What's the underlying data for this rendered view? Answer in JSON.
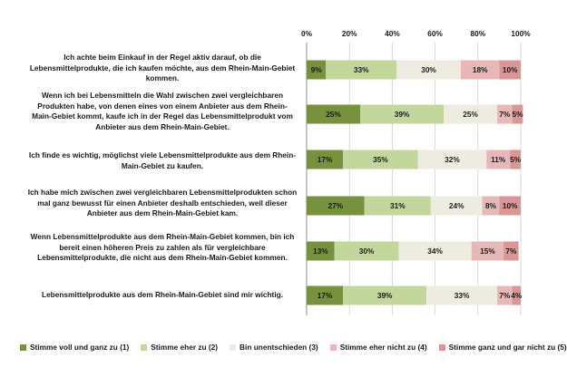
{
  "chart_data": {
    "type": "bar",
    "orientation": "horizontal",
    "stacked": true,
    "x_ticks": [
      "0%",
      "20%",
      "40%",
      "60%",
      "80%",
      "100%"
    ],
    "xlim": [
      0,
      100
    ],
    "categories": [
      "Ich achte beim Einkauf in der Regel aktiv darauf, ob die\nLebensmittelprodukte, die ich kaufen möchte, aus dem Rhein-Main-Gebiet\nkommen.",
      "Wenn ich bei Lebensmitteln die Wahl zwischen zwei vergleichbaren\nProdukten habe, von denen eines von einem Anbieter aus dem Rhein-\nMain-Gebiet kommt, kaufe ich in der Regel das Lebensmittelprodukt vom\nAnbieter aus dem Rhein-Main-Gebiet.",
      "Ich finde es wichtig, möglichst viele Lebensmittelprodukte aus dem Rhein-\nMain-Gebiet zu kaufen.",
      "Ich habe mich zwischen zwei vergleichbaren Lebensmittelprodukten schon\nmal ganz bewusst für einen Anbieter deshalb entschieden, weil dieser\nAnbieter aus dem Rhein-Main-Gebiet kam.",
      "Wenn Lebensmittelprodukte aus dem Rhein-Main-Gebiet kommen, bin ich\nbereit einen höheren Preis zu zahlen als für vergleichbare\nLebensmittelprodukte, die nicht aus dem Rhein-Main-Gebiet kommen.",
      "Lebensmittelprodukte aus dem Rhein-Main-Gebiet sind mir wichtig."
    ],
    "series": [
      {
        "name": "Stimme voll und ganz zu (1)",
        "color": "#76923c",
        "values": [
          9,
          25,
          17,
          27,
          13,
          17
        ]
      },
      {
        "name": "Stimme eher zu (2)",
        "color": "#c3d69b",
        "values": [
          33,
          39,
          35,
          31,
          30,
          39
        ]
      },
      {
        "name": "Bin unentschieden (3)",
        "color": "#eeece1",
        "values": [
          30,
          25,
          32,
          24,
          34,
          33
        ]
      },
      {
        "name": "Stimme eher nicht zu (4)",
        "color": "#e6b9b8",
        "values": [
          18,
          7,
          11,
          8,
          15,
          7
        ]
      },
      {
        "name": "Stimme ganz und gar nicht zu (5)",
        "color": "#d99694",
        "values": [
          10,
          5,
          5,
          10,
          7,
          4
        ]
      }
    ],
    "legend_position": "bottom",
    "grid": true
  }
}
